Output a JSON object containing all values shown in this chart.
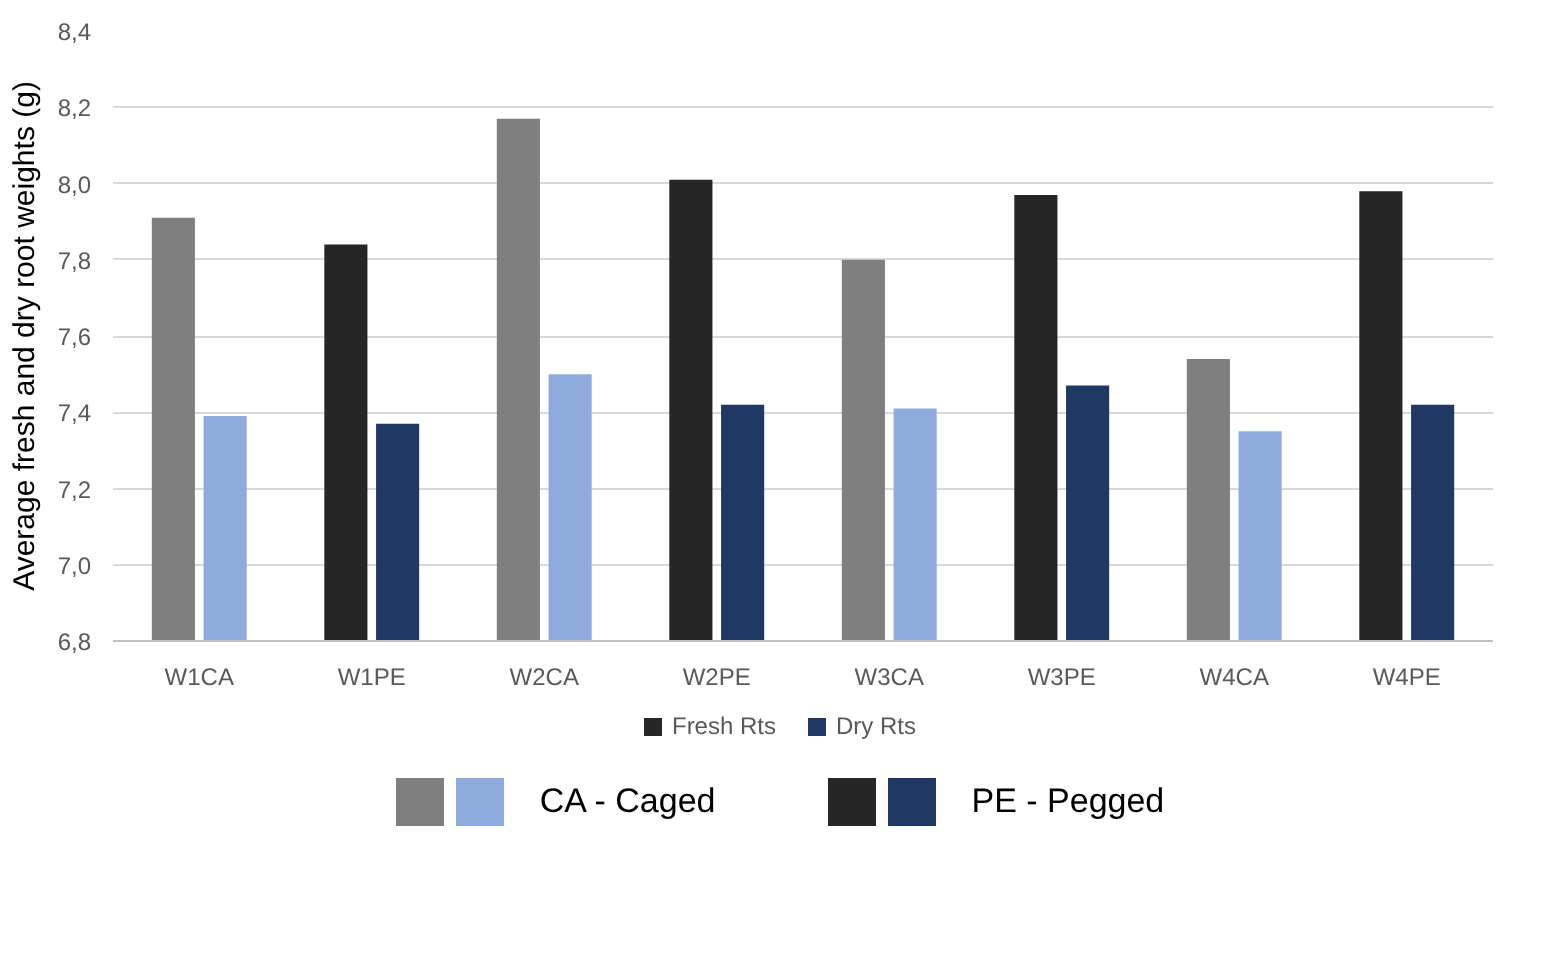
{
  "chart_data": {
    "type": "bar",
    "ylabel": "Average fresh and dry root weights (g)",
    "categories": [
      "W1CA",
      "W1PE",
      "W2CA",
      "W2PE",
      "W3CA",
      "W3PE",
      "W4CA",
      "W4PE"
    ],
    "series": [
      {
        "name": "Fresh Rts",
        "color": "#262626",
        "colors": [
          "#7f7f7f",
          "#262626",
          "#7f7f7f",
          "#262626",
          "#7f7f7f",
          "#262626",
          "#7f7f7f",
          "#262626"
        ],
        "values": [
          7.91,
          7.84,
          8.17,
          8.01,
          7.8,
          7.97,
          7.54,
          7.98
        ]
      },
      {
        "name": "Dry Rts",
        "color": "#203864",
        "colors": [
          "#8faadc",
          "#203864",
          "#8faadc",
          "#203864",
          "#8faadc",
          "#203864",
          "#8faadc",
          "#203864"
        ],
        "values": [
          7.39,
          7.37,
          7.5,
          7.42,
          7.41,
          7.47,
          7.35,
          7.42
        ]
      }
    ],
    "ylim": [
      6.8,
      8.4
    ],
    "yticks": [
      {
        "value": 6.8,
        "label": "6,8"
      },
      {
        "value": 7.0,
        "label": "7,0"
      },
      {
        "value": 7.2,
        "label": "7,2"
      },
      {
        "value": 7.4,
        "label": "7,4"
      },
      {
        "value": 7.6,
        "label": "7,6"
      },
      {
        "value": 7.8,
        "label": "7,8"
      },
      {
        "value": 8.0,
        "label": "8,0"
      },
      {
        "value": 8.2,
        "label": "8,2"
      },
      {
        "value": 8.4,
        "label": "8,4"
      }
    ],
    "grid": "y",
    "legend": "bottom",
    "annotations": [
      "CA - Caged",
      "PE - Pegged"
    ]
  }
}
